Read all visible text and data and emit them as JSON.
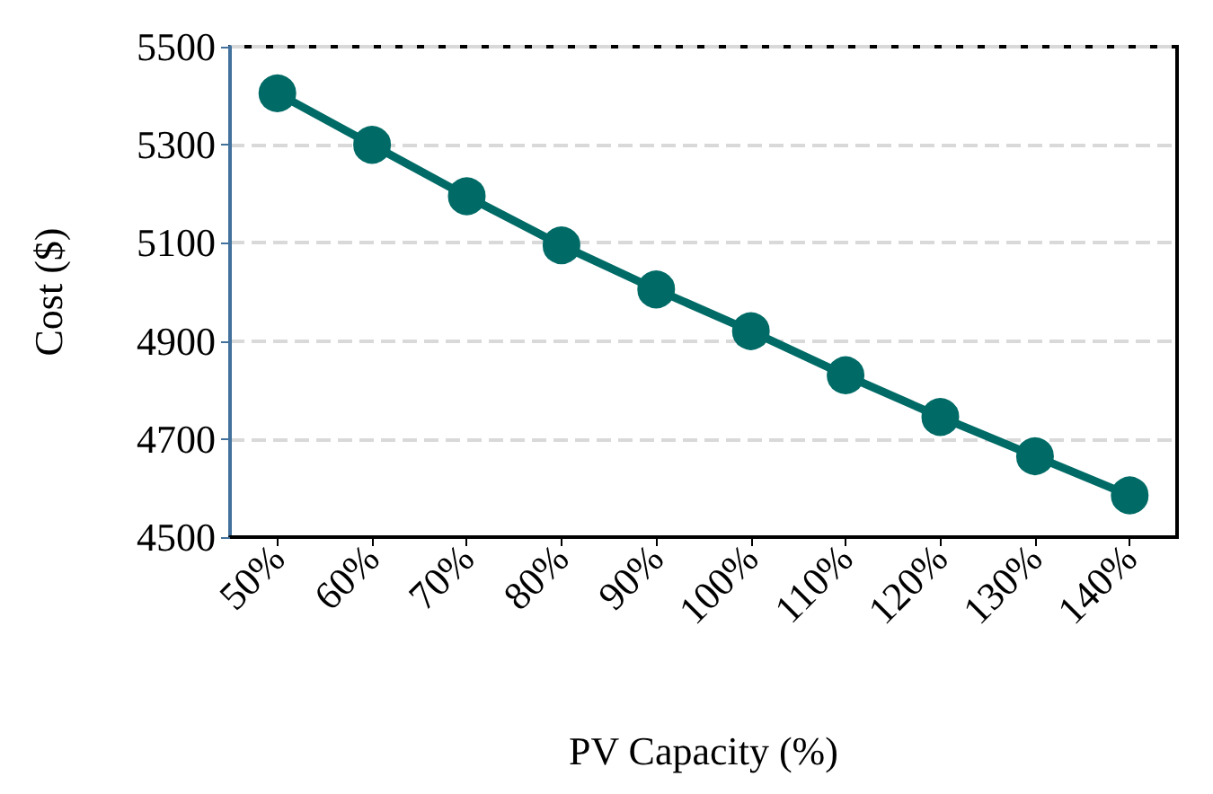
{
  "chart_data": {
    "type": "line",
    "xlabel": "PV Capacity (%)",
    "ylabel": "Cost ($)",
    "categories": [
      "50%",
      "60%",
      "70%",
      "80%",
      "90%",
      "100%",
      "110%",
      "120%",
      "130%",
      "140%"
    ],
    "series": [
      {
        "color": "#006b66",
        "values": [
          5405,
          5300,
          5195,
          5095,
          5005,
          4920,
          4830,
          4745,
          4665,
          4585
        ]
      }
    ],
    "ylim": [
      4500,
      5500
    ],
    "yticks": [
      4500,
      4700,
      4900,
      5100,
      5300,
      5500
    ],
    "grid": "y",
    "marker": "circle",
    "line_style": "solid"
  }
}
